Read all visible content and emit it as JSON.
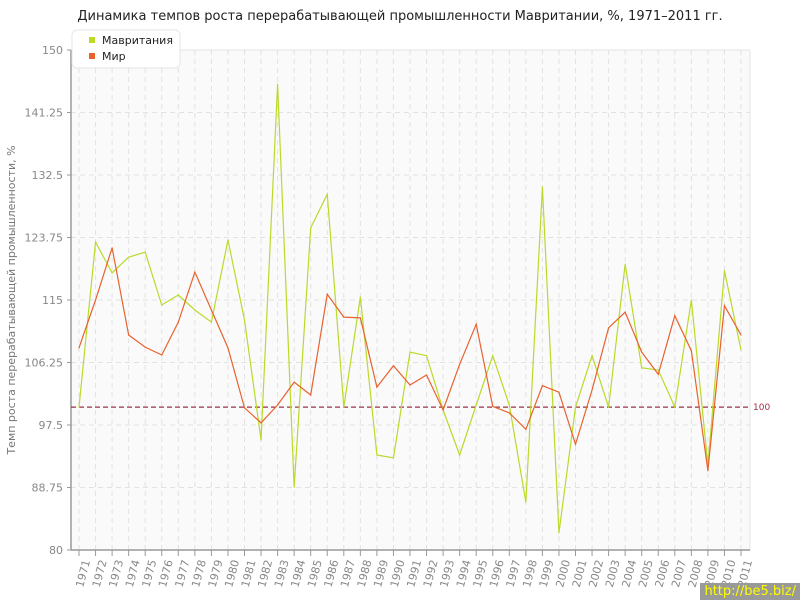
{
  "chart_data": {
    "type": "line",
    "title": "Динамика темпов роста перерабатывающей промышленности Мавритании, %, 1971–2011 гг.",
    "xlabel": "",
    "ylabel": "Темп роста перерабатывающей промышленности, %",
    "ylim": [
      80,
      150
    ],
    "yticks": [
      "80",
      "88.75",
      "97.5",
      "106.25",
      "115",
      "123.75",
      "132.5",
      "141.25",
      "150"
    ],
    "grid": true,
    "legend_position": "top-left",
    "reference_line": {
      "value": 100,
      "label": "100",
      "color": "#a0304a"
    },
    "x": [
      "1971",
      "1972",
      "1973",
      "1974",
      "1975",
      "1976",
      "1977",
      "1978",
      "1979",
      "1980",
      "1981",
      "1982",
      "1983",
      "1984",
      "1985",
      "1986",
      "1987",
      "1988",
      "1989",
      "1990",
      "1991",
      "1992",
      "1993",
      "1994",
      "1995",
      "1996",
      "1997",
      "1998",
      "1999",
      "2000",
      "2001",
      "2002",
      "2003",
      "2004",
      "2005",
      "2006",
      "2007",
      "2008",
      "2009",
      "2010",
      "2011"
    ],
    "series": [
      {
        "name": "Мавритания",
        "color": "#bada2a",
        "values": [
          100,
          123.1,
          118.8,
          121.0,
          121.7,
          114.3,
          115.7,
          113.6,
          111.9,
          123.4,
          112.2,
          95.4,
          145.2,
          88.8,
          125.1,
          129.8,
          100,
          115.4,
          93.3,
          92.9,
          107.7,
          107.2,
          99.6,
          93.3,
          100.3,
          107.2,
          100.3,
          86.7,
          130.8,
          82.4,
          100,
          107.2,
          100,
          120.0,
          105.5,
          105.2,
          100,
          115,
          91.9,
          119.1,
          108
        ]
      },
      {
        "name": "Мир",
        "color": "#e8622e",
        "values": [
          108.3,
          115,
          122.3,
          110.1,
          108.4,
          107.3,
          111.9,
          118.9,
          113.6,
          108.3,
          99.9,
          97.8,
          100.3,
          103.5,
          101.7,
          115.8,
          112.6,
          112.5,
          102.8,
          105.8,
          103.1,
          104.5,
          99.6,
          106.0,
          111.6,
          100.1,
          99.2,
          96.9,
          103.0,
          102.1,
          94.8,
          102.4,
          111.1,
          113.3,
          107.7,
          104.6,
          112.8,
          107.9,
          91.1,
          114.2,
          110.1
        ]
      }
    ]
  },
  "watermark": "http://be5.biz/"
}
